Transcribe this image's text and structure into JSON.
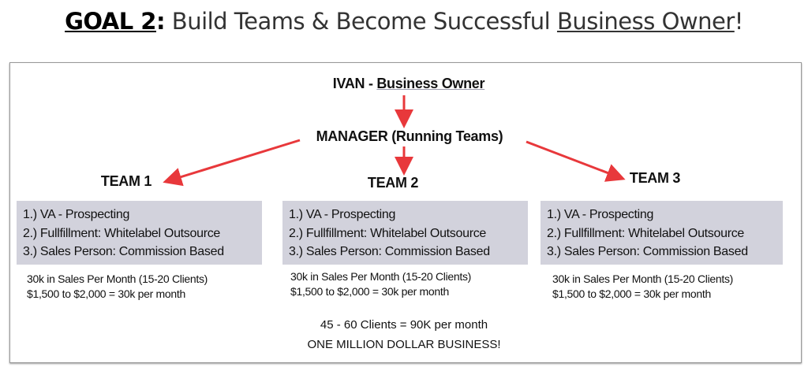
{
  "title": {
    "goal": "GOAL 2",
    "sep": ":",
    "text": " Build Teams & Become Successful ",
    "underlined": "Business Owner",
    "end": "!"
  },
  "owner": {
    "name": "IVAN - ",
    "role": "Business Owner"
  },
  "manager": "MANAGER (Running Teams)",
  "teams": [
    {
      "label": "TEAM 1",
      "items": [
        "1.) VA - Prospecting",
        "2.) Fullfillment: Whitelabel Outsource",
        "3.) Sales Person: Commission Based"
      ],
      "sales": "30k in Sales Per Month (15-20 Clients)",
      "price": "$1,500 to $2,000 = 30k per month"
    },
    {
      "label": "TEAM 2",
      "items": [
        "1.) VA - Prospecting",
        "2.) Fullfillment: Whitelabel Outsource",
        "3.) Sales Person: Commission Based"
      ],
      "sales": "30k in Sales Per Month (15-20 Clients)",
      "price": "$1,500 to $2,000 = 30k per month"
    },
    {
      "label": "TEAM 3",
      "items": [
        "1.) VA - Prospecting",
        "2.) Fullfillment: Whitelabel Outsource",
        "3.) Sales Person: Commission Based"
      ],
      "sales": "30k in Sales Per Month (15-20 Clients)",
      "price": "$1,500 to $2,000 = 30k per month"
    }
  ],
  "summary": {
    "clients": "45 - 60 Clients = 90K per month",
    "headline": "ONE MILLION DOLLAR BUSINESS!"
  },
  "colors": {
    "arrow": "#e8383b",
    "box": "#d2d2dc"
  }
}
